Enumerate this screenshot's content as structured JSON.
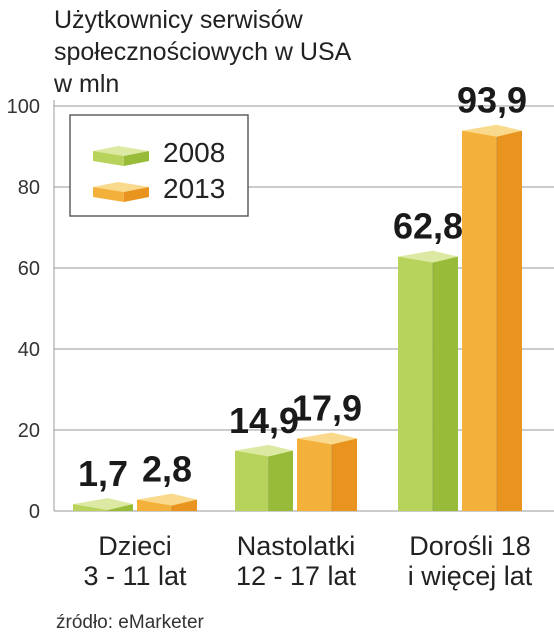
{
  "title_lines": [
    "Użytkownicy serwisów",
    "społecznościowych w USA",
    "w mln"
  ],
  "source": "źródło: eMarketer",
  "colors": {
    "2008": {
      "front": "#b8d35c",
      "side": "#98bc3a",
      "top": "#dbe9a2"
    },
    "2013": {
      "front": "#f3b13c",
      "side": "#e8941f",
      "top": "#f9d98c"
    }
  },
  "chart_data": {
    "type": "bar",
    "categories": [
      [
        "Dzieci",
        "3 - 11 lat"
      ],
      [
        "Nastolatki",
        "12 - 17 lat"
      ],
      [
        "Dorośli 18",
        "i więcej lat"
      ]
    ],
    "series": [
      {
        "name": "2008",
        "values": [
          1.7,
          14.9,
          62.8
        ],
        "labels": [
          "1,7",
          "14,9",
          "62,8"
        ]
      },
      {
        "name": "2013",
        "values": [
          2.8,
          17.9,
          93.9
        ],
        "labels": [
          "2,8",
          "17,9",
          "93,9"
        ]
      }
    ],
    "yticks": [
      0,
      20,
      40,
      60,
      80,
      100
    ],
    "ylim": [
      0,
      100
    ],
    "grid": true,
    "legend": "top-left"
  }
}
